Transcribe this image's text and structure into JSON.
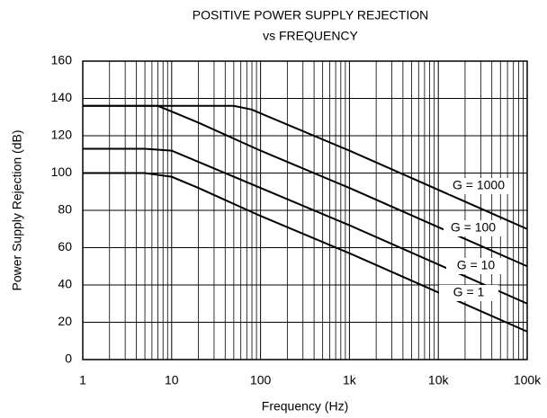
{
  "chart_data": {
    "type": "line",
    "title": "POSITIVE POWER SUPPLY REJECTION",
    "subtitle": "vs FREQUENCY",
    "x_label": "Frequency (Hz)",
    "y_label": "Power Supply Rejection (dB)",
    "log_x": true,
    "grid": true,
    "minor_grid": true,
    "xlim": [
      1,
      100000
    ],
    "xticks": [
      1,
      10,
      100,
      {
        "value": 1000,
        "label": "1k"
      },
      {
        "value": 10000,
        "label": "10k"
      },
      {
        "value": 100000,
        "label": "100k"
      }
    ],
    "ylim": [
      0,
      160
    ],
    "yticks": [
      0,
      20,
      40,
      60,
      80,
      100,
      120,
      140,
      160
    ],
    "series": [
      {
        "name": "G = 1000",
        "color": "#000000",
        "x": [
          1,
          50,
          80,
          100,
          1000,
          10000,
          100000
        ],
        "values": [
          136,
          136,
          134,
          132,
          112,
          91,
          70
        ]
      },
      {
        "name": "G = 100",
        "color": "#000000",
        "x": [
          1,
          7,
          10,
          20,
          100,
          1000,
          10000,
          100000
        ],
        "values": [
          136,
          136,
          133,
          127,
          112,
          92,
          71,
          50
        ]
      },
      {
        "name": "G = 10",
        "color": "#000000",
        "x": [
          1,
          5,
          10,
          20,
          100,
          1000,
          10000,
          100000
        ],
        "values": [
          113,
          113,
          112,
          106,
          92,
          72,
          51,
          30
        ]
      },
      {
        "name": "G = 1",
        "color": "#000000",
        "x": [
          1,
          5,
          10,
          20,
          100,
          1000,
          10000,
          100000
        ],
        "values": [
          100,
          100,
          98,
          92,
          77,
          57,
          36,
          15
        ]
      }
    ]
  }
}
